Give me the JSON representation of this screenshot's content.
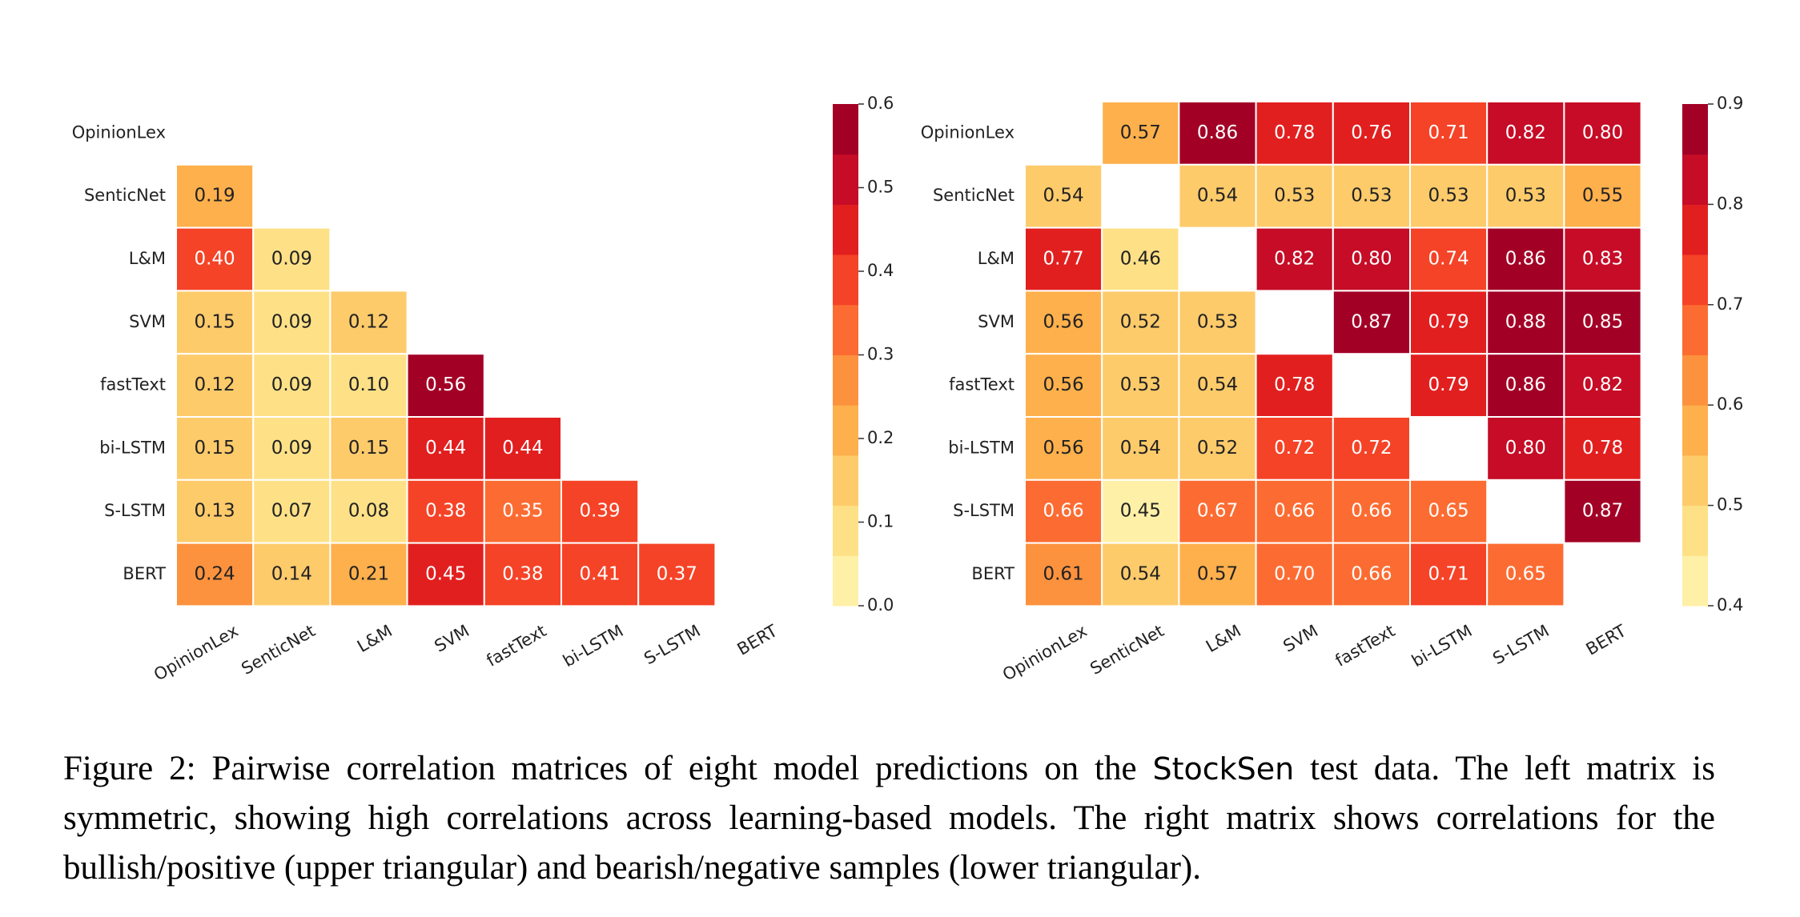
{
  "chart_data": [
    {
      "type": "heatmap",
      "categories": [
        "OpinionLex",
        "SenticNet",
        "L&M",
        "SVM",
        "fastText",
        "bi-LSTM",
        "S-LSTM",
        "BERT"
      ],
      "values": [
        [
          null,
          null,
          null,
          null,
          null,
          null,
          null,
          null
        ],
        [
          0.19,
          null,
          null,
          null,
          null,
          null,
          null,
          null
        ],
        [
          0.4,
          0.09,
          null,
          null,
          null,
          null,
          null,
          null
        ],
        [
          0.15,
          0.09,
          0.12,
          null,
          null,
          null,
          null,
          null
        ],
        [
          0.12,
          0.09,
          0.1,
          0.56,
          null,
          null,
          null,
          null
        ],
        [
          0.15,
          0.09,
          0.15,
          0.44,
          0.44,
          null,
          null,
          null
        ],
        [
          0.13,
          0.07,
          0.08,
          0.38,
          0.35,
          0.39,
          null,
          null
        ],
        [
          0.24,
          0.14,
          0.21,
          0.45,
          0.38,
          0.41,
          0.37,
          null
        ]
      ],
      "value_labels": [
        [
          null,
          null,
          null,
          null,
          null,
          null,
          null,
          null
        ],
        [
          "0.19",
          null,
          null,
          null,
          null,
          null,
          null,
          null
        ],
        [
          "0.40",
          "0.09",
          null,
          null,
          null,
          null,
          null,
          null
        ],
        [
          "0.15",
          "0.09",
          "0.12",
          null,
          null,
          null,
          null,
          null
        ],
        [
          "0.12",
          "0.09",
          "0.10",
          "0.56",
          null,
          null,
          null,
          null
        ],
        [
          "0.15",
          "0.09",
          "0.15",
          "0.44",
          "0.44",
          null,
          null,
          null
        ],
        [
          "0.13",
          "0.07",
          "0.08",
          "0.38",
          "0.35",
          "0.39",
          null,
          null
        ],
        [
          "0.24",
          "0.14",
          "0.21",
          "0.45",
          "0.38",
          "0.41",
          "0.37",
          null
        ]
      ],
      "clim": [
        0,
        0.6
      ],
      "cticks": [
        {
          "value": 0,
          "label": "0.0"
        },
        0.1,
        0.2,
        0.3,
        0.4,
        0.5,
        0.6
      ],
      "colormap": [
        "#fff0a8",
        "#fee187",
        "#fecb6b",
        "#feb04c",
        "#fd923e",
        "#fc6c32",
        "#f54327",
        "#e21f1f",
        "#c60c26",
        "#a30026"
      ]
    },
    {
      "type": "heatmap",
      "categories": [
        "OpinionLex",
        "SenticNet",
        "L&M",
        "SVM",
        "fastText",
        "bi-LSTM",
        "S-LSTM",
        "BERT"
      ],
      "values": [
        [
          null,
          0.57,
          0.86,
          0.78,
          0.76,
          0.71,
          0.82,
          0.8
        ],
        [
          0.54,
          null,
          0.54,
          0.53,
          0.53,
          0.53,
          0.53,
          0.55
        ],
        [
          0.77,
          0.46,
          null,
          0.82,
          0.8,
          0.74,
          0.86,
          0.83
        ],
        [
          0.56,
          0.52,
          0.53,
          null,
          0.87,
          0.79,
          0.88,
          0.85
        ],
        [
          0.56,
          0.53,
          0.54,
          0.78,
          null,
          0.79,
          0.86,
          0.82
        ],
        [
          0.56,
          0.54,
          0.52,
          0.72,
          0.72,
          null,
          0.8,
          0.78
        ],
        [
          0.66,
          0.45,
          0.67,
          0.66,
          0.66,
          0.65,
          null,
          0.87
        ],
        [
          0.61,
          0.54,
          0.57,
          0.7,
          0.66,
          0.71,
          0.65,
          null
        ]
      ],
      "value_labels": [
        [
          null,
          "0.57",
          "0.86",
          "0.78",
          "0.76",
          "0.71",
          "0.82",
          "0.80"
        ],
        [
          "0.54",
          null,
          "0.54",
          "0.53",
          "0.53",
          "0.53",
          "0.53",
          "0.55"
        ],
        [
          "0.77",
          "0.46",
          null,
          "0.82",
          "0.80",
          "0.74",
          "0.86",
          "0.83"
        ],
        [
          "0.56",
          "0.52",
          "0.53",
          null,
          "0.87",
          "0.79",
          "0.88",
          "0.85"
        ],
        [
          "0.56",
          "0.53",
          "0.54",
          "0.78",
          null,
          "0.79",
          "0.86",
          "0.82"
        ],
        [
          "0.56",
          "0.54",
          "0.52",
          "0.72",
          "0.72",
          null,
          "0.80",
          "0.78"
        ],
        [
          "0.66",
          "0.45",
          "0.67",
          "0.66",
          "0.66",
          "0.65",
          null,
          "0.87"
        ],
        [
          "0.61",
          "0.54",
          "0.57",
          "0.70",
          "0.66",
          "0.71",
          "0.65",
          null
        ]
      ],
      "clim": [
        0.4,
        0.9
      ],
      "cticks": [
        0.4,
        0.5,
        0.6,
        0.7,
        0.8,
        0.9
      ],
      "colormap": [
        "#fff0a8",
        "#fee187",
        "#fecb6b",
        "#feb04c",
        "#fd923e",
        "#fc6c32",
        "#f54327",
        "#e21f1f",
        "#c60c26",
        "#a30026"
      ]
    }
  ],
  "caption": {
    "before": "Figure 2: Pairwise correlation matrices of eight model predictions on the ",
    "name": "StockSen",
    "after": " test data. The left matrix is symmetric, showing high correlations across learning-based models. The right matrix shows correlations for the bullish/positive (upper triangular) and bearish/negative samples (lower triangular)."
  }
}
